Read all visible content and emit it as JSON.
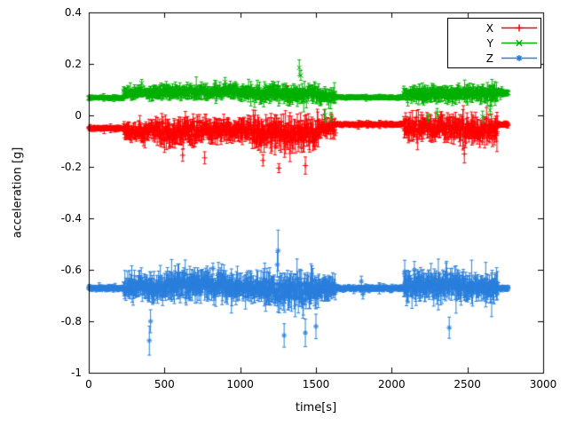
{
  "figure": {
    "background": "#ffffff",
    "text_color": "#000000",
    "border_color": "#000000"
  },
  "chart_data": {
    "type": "scatter",
    "style": "yerrorbars",
    "title": "",
    "xlabel": "time[s]",
    "ylabel": "acceleration [g]",
    "xlim": [
      0,
      3000
    ],
    "ylim": [
      -1,
      0.4
    ],
    "x_ticks": [
      0,
      500,
      1000,
      1500,
      2000,
      2500,
      3000
    ],
    "x_tick_labels": [
      "0",
      "500",
      "1000",
      "1500",
      "2000",
      "2500",
      "3000"
    ],
    "y_ticks": [
      -1,
      -0.8,
      -0.6,
      -0.4,
      -0.2,
      0,
      0.2,
      0.4
    ],
    "y_tick_labels": [
      "-1",
      "-0.8",
      "-0.6",
      "-0.4",
      "-0.2",
      "0",
      "0.2",
      "0.4"
    ],
    "grid": false,
    "legend": {
      "position": "top-right",
      "border": true,
      "entries": [
        "X",
        "Y",
        "Z"
      ]
    },
    "sample_interval_s": 3,
    "x_data_range": [
      0,
      2770
    ],
    "segment_fields": [
      "t_start",
      "t_end",
      "mean_g",
      "noise_sd_g",
      "errorbar_g"
    ],
    "spike_fields": [
      "t",
      "y_g",
      "errorbar_g"
    ],
    "series": [
      {
        "name": "X",
        "color": "#ff0000",
        "marker": "plus",
        "baseline": -0.05,
        "segments": [
          [
            0,
            230,
            -0.05,
            0.004,
            0.009
          ],
          [
            230,
            470,
            -0.058,
            0.02,
            0.03
          ],
          [
            470,
            720,
            -0.065,
            0.03,
            0.042
          ],
          [
            720,
            1080,
            -0.06,
            0.026,
            0.038
          ],
          [
            1080,
            1520,
            -0.07,
            0.036,
            0.05
          ],
          [
            1520,
            1630,
            -0.048,
            0.02,
            0.028
          ],
          [
            1630,
            2080,
            -0.035,
            0.004,
            0.009
          ],
          [
            2080,
            2470,
            -0.05,
            0.028,
            0.04
          ],
          [
            2470,
            2700,
            -0.058,
            0.03,
            0.044
          ],
          [
            2700,
            2770,
            -0.035,
            0.005,
            0.01
          ]
        ],
        "spikes": [
          [
            620,
            -0.155,
            0.02
          ],
          [
            765,
            -0.165,
            0.025
          ],
          [
            1150,
            -0.175,
            0.02
          ],
          [
            1255,
            -0.205,
            0.02
          ],
          [
            1310,
            0.095,
            0.025
          ],
          [
            1430,
            -0.195,
            0.03
          ],
          [
            2480,
            -0.15,
            0.03
          ]
        ]
      },
      {
        "name": "Y",
        "color": "#00b000",
        "marker": "cross",
        "baseline": 0.08,
        "segments": [
          [
            0,
            230,
            0.068,
            0.003,
            0.008
          ],
          [
            230,
            470,
            0.088,
            0.012,
            0.02
          ],
          [
            470,
            1080,
            0.092,
            0.014,
            0.024
          ],
          [
            1080,
            1520,
            0.085,
            0.018,
            0.028
          ],
          [
            1520,
            1630,
            0.072,
            0.016,
            0.024
          ],
          [
            1630,
            2080,
            0.07,
            0.003,
            0.008
          ],
          [
            2080,
            2470,
            0.082,
            0.016,
            0.026
          ],
          [
            2470,
            2700,
            0.085,
            0.018,
            0.028
          ],
          [
            2700,
            2770,
            0.088,
            0.005,
            0.012
          ]
        ],
        "spikes": [
          [
            350,
            0.125,
            0.015
          ],
          [
            900,
            0.13,
            0.015
          ],
          [
            1390,
            0.185,
            0.03
          ],
          [
            1400,
            0.155,
            0.02
          ],
          [
            1560,
            0.0,
            0.02
          ],
          [
            1600,
            -0.005,
            0.015
          ],
          [
            2240,
            -0.01,
            0.02
          ],
          [
            2300,
            0.01,
            0.018
          ],
          [
            2600,
            -0.005,
            0.02
          ],
          [
            2650,
            0.02,
            0.018
          ]
        ]
      },
      {
        "name": "Z",
        "color": "#2a7fdc",
        "marker": "asterisk",
        "baseline": -0.67,
        "segments": [
          [
            0,
            230,
            -0.672,
            0.004,
            0.01
          ],
          [
            230,
            520,
            -0.668,
            0.026,
            0.045
          ],
          [
            520,
            900,
            -0.655,
            0.03,
            0.05
          ],
          [
            900,
            1150,
            -0.668,
            0.026,
            0.045
          ],
          [
            1150,
            1520,
            -0.68,
            0.036,
            0.058
          ],
          [
            1520,
            1630,
            -0.668,
            0.024,
            0.04
          ],
          [
            1630,
            2080,
            -0.672,
            0.005,
            0.011
          ],
          [
            2080,
            2480,
            -0.658,
            0.03,
            0.05
          ],
          [
            2480,
            2700,
            -0.668,
            0.026,
            0.045
          ],
          [
            2700,
            2770,
            -0.672,
            0.005,
            0.011
          ]
        ],
        "spikes": [
          [
            400,
            -0.875,
            0.055
          ],
          [
            408,
            -0.8,
            0.04
          ],
          [
            820,
            -0.595,
            0.025
          ],
          [
            1245,
            -0.58,
            0.05
          ],
          [
            1250,
            -0.525,
            0.07
          ],
          [
            1290,
            -0.855,
            0.05
          ],
          [
            1430,
            -0.845,
            0.05
          ],
          [
            1500,
            -0.82,
            0.04
          ],
          [
            1800,
            -0.645,
            0.018
          ],
          [
            1810,
            -0.695,
            0.018
          ],
          [
            2150,
            -0.6,
            0.03
          ],
          [
            2380,
            -0.825,
            0.04
          ]
        ]
      }
    ]
  }
}
